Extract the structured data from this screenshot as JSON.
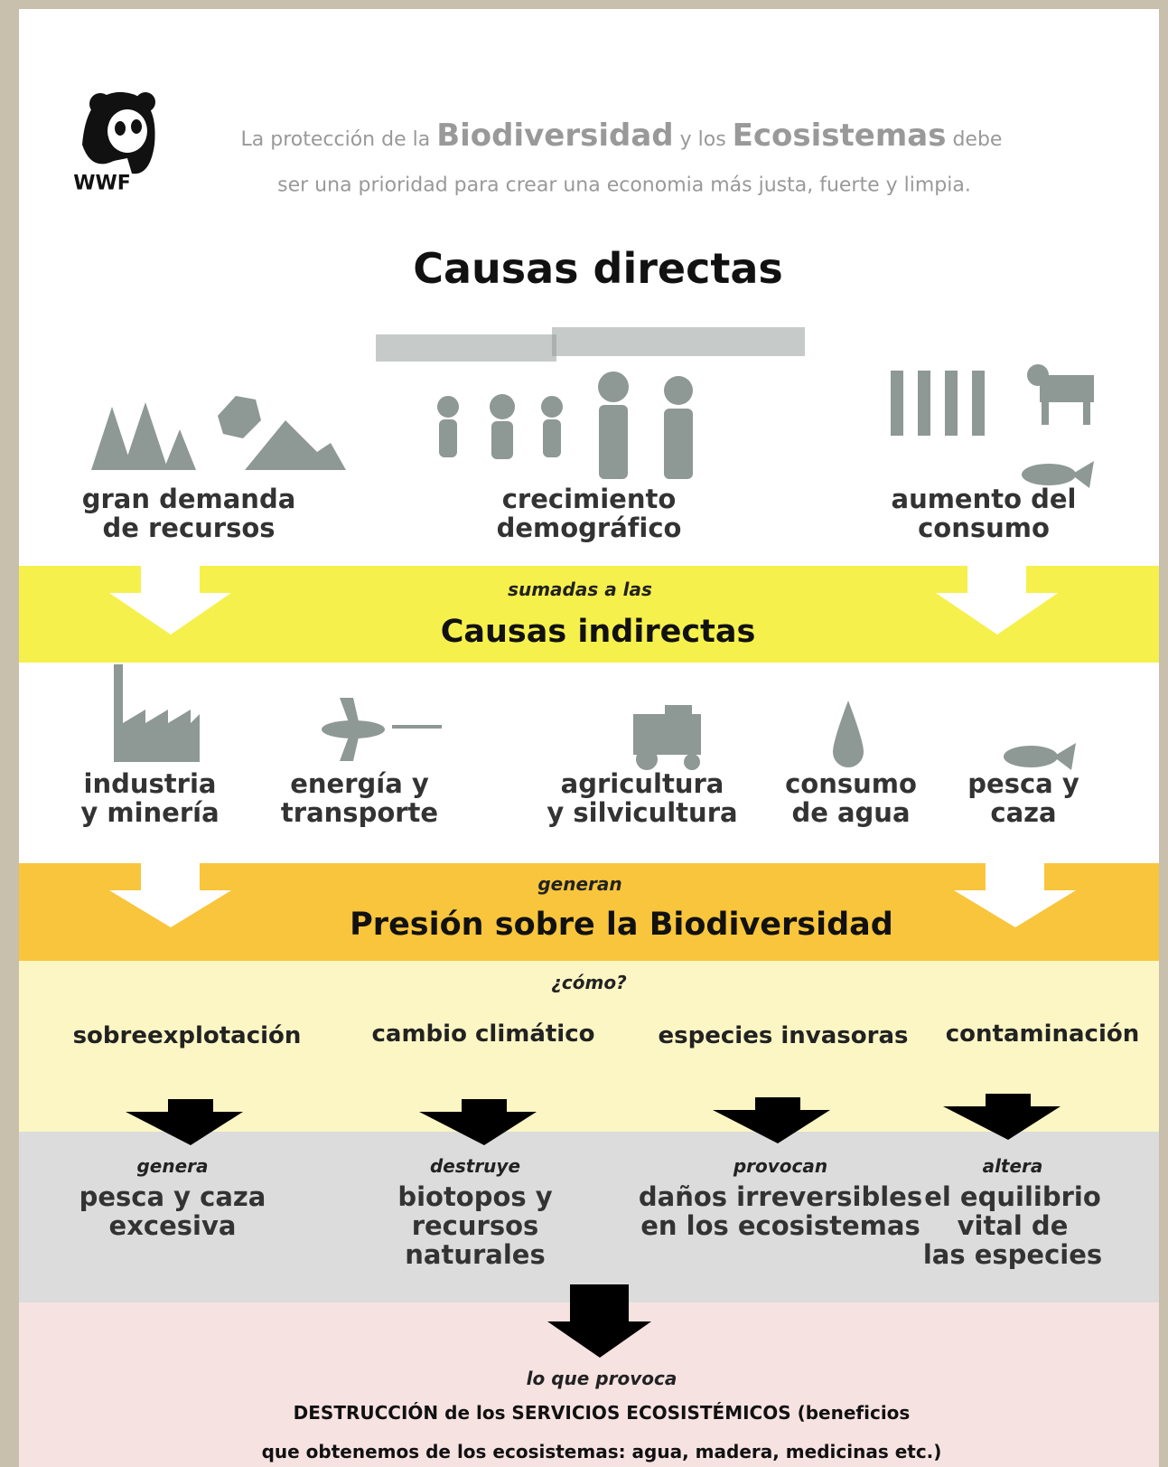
{
  "header": {
    "logo": "WWF",
    "tagline_line1": [
      "La protección de la",
      "Biodiversidad",
      "y los",
      "Ecosistemas",
      "debe"
    ],
    "tagline_line2": "ser una prioridad para crear una economia más justa, fuerte y limpia."
  },
  "direct_causes": {
    "title": "Causas directas",
    "items": [
      {
        "lines": [
          "gran demanda",
          "de recursos"
        ]
      },
      {
        "lines": [
          "crecimiento",
          "demográfico"
        ]
      },
      {
        "lines": [
          "aumento del",
          "consumo"
        ]
      }
    ]
  },
  "indirect_causes": {
    "connector": "sumadas a las",
    "title": "Causas indirectas",
    "items": [
      {
        "lines": [
          "industria",
          "y minería"
        ]
      },
      {
        "lines": [
          "energía y",
          "transporte"
        ]
      },
      {
        "lines": [
          "agricultura",
          "y silvicultura"
        ]
      },
      {
        "lines": [
          "consumo",
          "de agua"
        ]
      },
      {
        "lines": [
          "pesca y",
          "caza"
        ]
      }
    ]
  },
  "pressure": {
    "connector": "generan",
    "title": "Presión sobre la Biodiversidad"
  },
  "mechanisms": {
    "question": "¿cómo?",
    "items": [
      "sobreexplotación",
      "cambio climático",
      "especies invasoras",
      "contaminación"
    ]
  },
  "effects": {
    "items": [
      {
        "verb": "genera",
        "lines": [
          "pesca y caza",
          "excesiva"
        ]
      },
      {
        "verb": "destruye",
        "lines": [
          "biotopos y",
          "recursos",
          "naturales"
        ]
      },
      {
        "verb": "provocan",
        "lines": [
          "daños irreversibles",
          "en los ecosistemas"
        ]
      },
      {
        "verb": "altera",
        "lines": [
          "el equilibrio",
          "vital de",
          "las especies"
        ]
      }
    ]
  },
  "outcome": {
    "connector": "lo que provoca",
    "lines": [
      "DESTRUCCIÓN de los SERVICIOS ECOSISTÉMICOS (beneficios",
      "que obtenemos de los ecosistemas: agua, madera, medicinas etc.)"
    ]
  }
}
